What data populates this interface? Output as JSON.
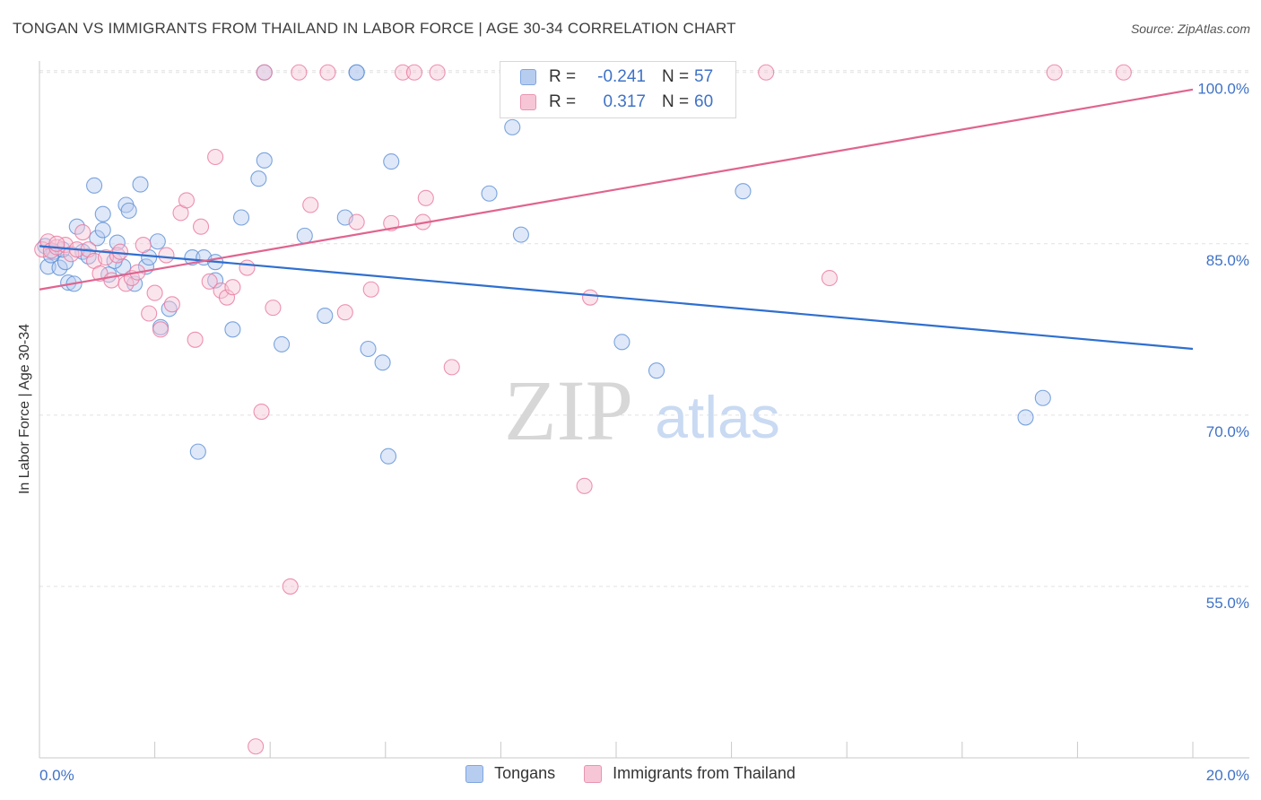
{
  "header": {
    "title": "TONGAN VS IMMIGRANTS FROM THAILAND IN LABOR FORCE | AGE 30-34 CORRELATION CHART",
    "source": "Source: ZipAtlas.com"
  },
  "legend": {
    "r_label": "R =",
    "n_label": "N =",
    "series": [
      {
        "name": "Tongans",
        "r": "-0.241",
        "n": "57",
        "color": "#5b8fd6"
      },
      {
        "name": "Immigrants from Thailand",
        "r": "0.317",
        "n": "60",
        "color": "#e8789f"
      }
    ]
  },
  "watermark": {
    "zip": "ZIP",
    "atlas": "atlas"
  },
  "chart_data": {
    "type": "scatter",
    "title": "TONGAN VS IMMIGRANTS FROM THAILAND IN LABOR FORCE | AGE 30-34 CORRELATION CHART",
    "xlabel": "",
    "ylabel": "In Labor Force | Age 30-34",
    "xlim": [
      0,
      20
    ],
    "ylim": [
      40,
      101
    ],
    "x_tick_labels": [
      "0.0%",
      "20.0%"
    ],
    "y_ticks": [
      55,
      70,
      85,
      100
    ],
    "y_tick_labels": [
      "55.0%",
      "70.0%",
      "85.0%",
      "100.0%"
    ],
    "grid": true,
    "series": [
      {
        "name": "Tongans",
        "color": "#5b8fd6",
        "trend": {
          "x": [
            0,
            20
          ],
          "y": [
            84.8,
            75.8
          ]
        },
        "points": [
          [
            0.1,
            84.8
          ],
          [
            0.15,
            83
          ],
          [
            0.25,
            84.3
          ],
          [
            0.35,
            82.9
          ],
          [
            0.45,
            83.4
          ],
          [
            0.5,
            81.6
          ],
          [
            0.6,
            81.5
          ],
          [
            0.65,
            86.5
          ],
          [
            0.75,
            84.3
          ],
          [
            0.85,
            83.9
          ],
          [
            0.95,
            90.1
          ],
          [
            1.0,
            85.5
          ],
          [
            1.1,
            87.6
          ],
          [
            1.1,
            86.2
          ],
          [
            1.2,
            82.3
          ],
          [
            1.35,
            85.1
          ],
          [
            1.45,
            83.0
          ],
          [
            1.5,
            88.4
          ],
          [
            1.55,
            87.9
          ],
          [
            1.65,
            81.5
          ],
          [
            1.75,
            90.2
          ],
          [
            1.85,
            83.0
          ],
          [
            1.9,
            83.8
          ],
          [
            2.05,
            85.2
          ],
          [
            2.1,
            77.7
          ],
          [
            2.25,
            79.3
          ],
          [
            2.65,
            83.8
          ],
          [
            2.75,
            66.8
          ],
          [
            2.85,
            83.8
          ],
          [
            3.05,
            83.4
          ],
          [
            3.05,
            81.8
          ],
          [
            3.35,
            77.5
          ],
          [
            3.5,
            87.3
          ],
          [
            3.8,
            90.7
          ],
          [
            3.9,
            92.3
          ],
          [
            4.2,
            76.2
          ],
          [
            4.6,
            85.7
          ],
          [
            4.95,
            78.7
          ],
          [
            5.3,
            87.3
          ],
          [
            5.7,
            75.8
          ],
          [
            5.95,
            74.6
          ],
          [
            6.1,
            92.2
          ],
          [
            6.05,
            66.4
          ],
          [
            7.8,
            89.4
          ],
          [
            8.2,
            95.2
          ],
          [
            8.35,
            85.8
          ],
          [
            10.1,
            76.4
          ],
          [
            10.7,
            73.9
          ],
          [
            12.2,
            89.6
          ],
          [
            17.1,
            69.8
          ],
          [
            17.4,
            71.5
          ],
          [
            0.2,
            84.0
          ],
          [
            0.4,
            84.5
          ],
          [
            1.3,
            83.5
          ],
          [
            3.9,
            100
          ],
          [
            5.5,
            100
          ],
          [
            5.5,
            100
          ]
        ]
      },
      {
        "name": "Immigrants from Thailand",
        "color": "#e8789f",
        "trend": {
          "x": [
            0,
            20
          ],
          "y": [
            81.0,
            98.5
          ]
        },
        "points": [
          [
            0.05,
            84.5
          ],
          [
            0.15,
            85.2
          ],
          [
            0.2,
            84.4
          ],
          [
            0.3,
            84.7
          ],
          [
            0.45,
            84.9
          ],
          [
            0.55,
            84.1
          ],
          [
            0.65,
            84.5
          ],
          [
            0.75,
            86.0
          ],
          [
            0.85,
            84.5
          ],
          [
            0.95,
            83.5
          ],
          [
            1.05,
            82.4
          ],
          [
            1.15,
            83.8
          ],
          [
            1.25,
            81.8
          ],
          [
            1.35,
            84.0
          ],
          [
            1.5,
            81.5
          ],
          [
            1.6,
            82.0
          ],
          [
            1.7,
            82.5
          ],
          [
            1.8,
            84.9
          ],
          [
            1.9,
            78.9
          ],
          [
            2.0,
            80.7
          ],
          [
            2.1,
            77.5
          ],
          [
            2.2,
            84.0
          ],
          [
            2.3,
            79.7
          ],
          [
            2.45,
            87.7
          ],
          [
            2.55,
            88.8
          ],
          [
            2.7,
            76.6
          ],
          [
            2.8,
            86.5
          ],
          [
            2.95,
            81.7
          ],
          [
            3.05,
            92.6
          ],
          [
            3.15,
            80.9
          ],
          [
            3.25,
            80.3
          ],
          [
            3.35,
            81.2
          ],
          [
            3.6,
            82.9
          ],
          [
            3.85,
            70.3
          ],
          [
            4.05,
            79.4
          ],
          [
            4.35,
            55.0
          ],
          [
            4.7,
            88.4
          ],
          [
            5.3,
            79.0
          ],
          [
            5.5,
            86.9
          ],
          [
            5.75,
            81.0
          ],
          [
            6.1,
            86.8
          ],
          [
            6.65,
            86.9
          ],
          [
            6.7,
            89.0
          ],
          [
            7.15,
            74.2
          ],
          [
            8.2,
            100.2
          ],
          [
            9.45,
            63.8
          ],
          [
            9.55,
            80.3
          ],
          [
            12.6,
            100
          ],
          [
            13.7,
            82.0
          ],
          [
            17.6,
            100
          ],
          [
            18.8,
            100
          ],
          [
            3.9,
            100
          ],
          [
            4.5,
            100
          ],
          [
            5.0,
            100
          ],
          [
            6.3,
            100
          ],
          [
            6.5,
            100
          ],
          [
            6.9,
            100
          ],
          [
            3.75,
            41.0
          ],
          [
            0.3,
            85.0
          ],
          [
            1.4,
            84.3
          ]
        ]
      }
    ]
  }
}
